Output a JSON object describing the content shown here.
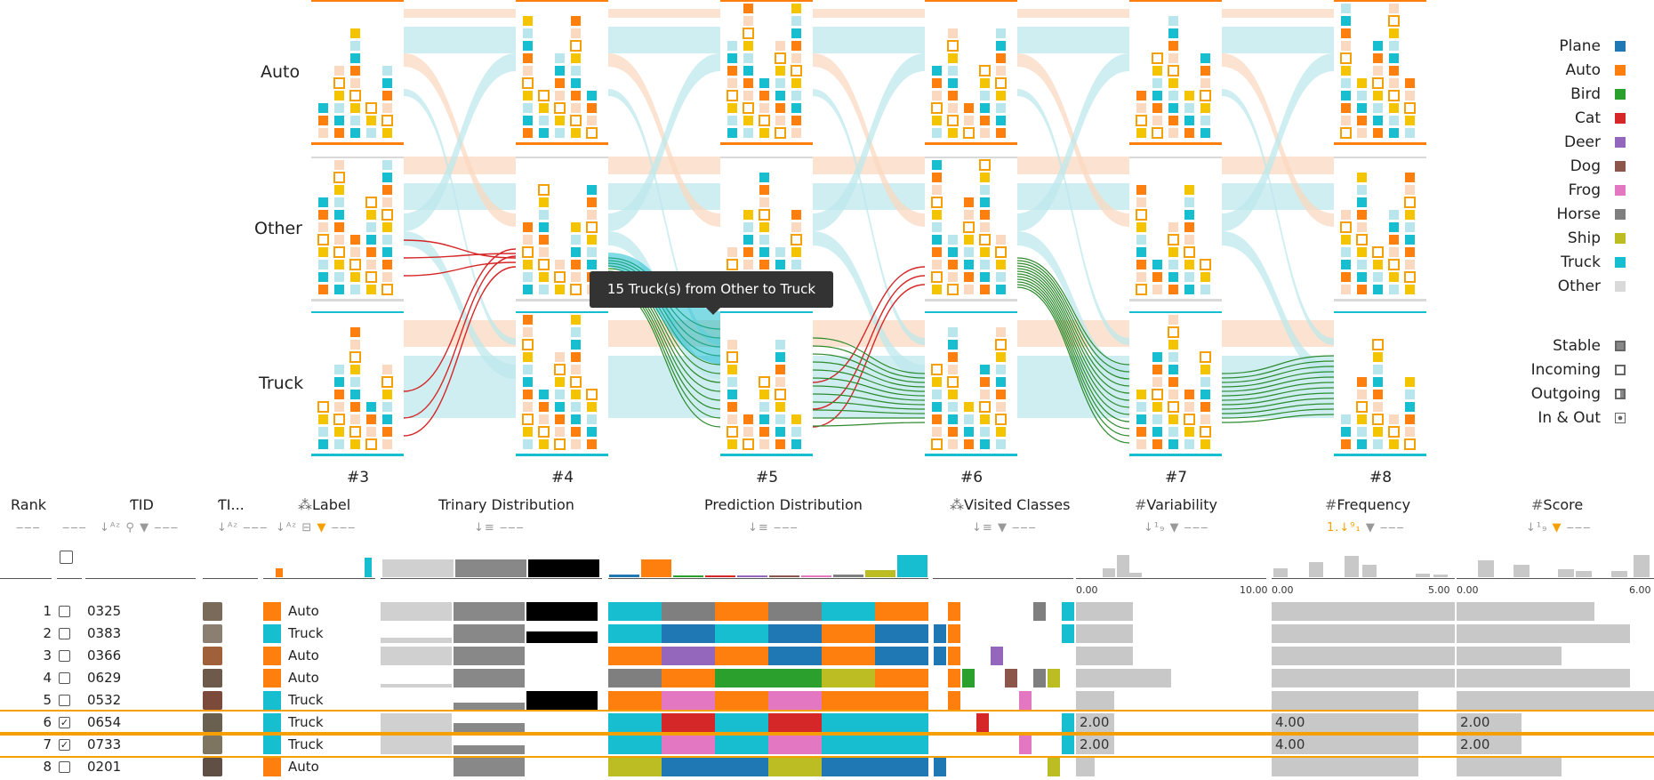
{
  "colors": {
    "plane": "#1f77b4",
    "auto": "#ff7f0e",
    "bird": "#2ca02c",
    "cat": "#d62728",
    "deer": "#9467bd",
    "dog": "#8c564b",
    "frog": "#e377c2",
    "horse": "#7f7f7f",
    "ship": "#bcbd22",
    "truck": "#17becf",
    "other": "#d9d9d9",
    "stable_flow_orange": "#fbd8c0",
    "stable_flow_cyan": "#bde8ec",
    "incoming_link": "#2e8b2e",
    "outgoing_link": "#d62728",
    "highlight": "#f5a000"
  },
  "rows_labels": [
    "Auto",
    "Other",
    "Truck"
  ],
  "steps": [
    "#3",
    "#4",
    "#5",
    "#6",
    "#7",
    "#8"
  ],
  "tooltip": "15 Truck(s) from Other to Truck",
  "legend": {
    "classes": [
      {
        "name": "Plane",
        "color": "#1f77b4"
      },
      {
        "name": "Auto",
        "color": "#ff7f0e"
      },
      {
        "name": "Bird",
        "color": "#2ca02c"
      },
      {
        "name": "Cat",
        "color": "#d62728"
      },
      {
        "name": "Deer",
        "color": "#9467bd"
      },
      {
        "name": "Dog",
        "color": "#8c564b"
      },
      {
        "name": "Frog",
        "color": "#e377c2"
      },
      {
        "name": "Horse",
        "color": "#7f7f7f"
      },
      {
        "name": "Ship",
        "color": "#bcbd22"
      },
      {
        "name": "Truck",
        "color": "#17becf"
      },
      {
        "name": "Other",
        "color": "#d9d9d9"
      }
    ],
    "states": [
      {
        "name": "Stable",
        "icon": "stable-icon"
      },
      {
        "name": "Incoming",
        "icon": "incoming-icon"
      },
      {
        "name": "Outgoing",
        "icon": "outgoing-icon"
      },
      {
        "name": "In & Out",
        "icon": "in-out-icon"
      }
    ]
  },
  "columns": {
    "rank": "Rank",
    "id": "ID",
    "image": "I...",
    "label": "Label",
    "trinary": "Trinary Distribution",
    "prediction": "Prediction Distribution",
    "visited": "Visited Classes",
    "variability": "Variability",
    "frequency": "Frequency",
    "score": "Score"
  },
  "axes": {
    "variability": {
      "min": "0.00",
      "max": "10.00"
    },
    "frequency": {
      "min": "0.00",
      "max": "5.00"
    },
    "score": {
      "min": "0.00",
      "max": "6.00"
    }
  },
  "rows": [
    {
      "rank": "1",
      "id": "0325",
      "label": "Auto",
      "checked": false,
      "trinary": [
        1,
        1,
        1
      ],
      "pred": [
        "truck",
        "horse",
        "auto",
        "horse",
        "truck",
        "auto"
      ],
      "visited": [
        "auto",
        "horse",
        "truck"
      ],
      "variability": 0.3,
      "frequency": 1.0,
      "score": 0.7,
      "text": null
    },
    {
      "rank": "2",
      "id": "0383",
      "label": "Truck",
      "checked": false,
      "trinary": [
        0.3,
        1,
        0.6
      ],
      "pred": [
        "truck",
        "plane",
        "truck",
        "plane",
        "auto",
        "plane"
      ],
      "visited": [
        "plane",
        "auto",
        "truck"
      ],
      "variability": 0.3,
      "frequency": 1.0,
      "score": 0.88,
      "text": null
    },
    {
      "rank": "3",
      "id": "0366",
      "label": "Auto",
      "checked": false,
      "trinary": [
        1,
        1,
        0
      ],
      "pred": [
        "auto",
        "deer",
        "auto",
        "plane",
        "auto",
        "plane"
      ],
      "visited": [
        "plane",
        "auto",
        "deer"
      ],
      "variability": 0.3,
      "frequency": 1.0,
      "score": 0.53,
      "text": null
    },
    {
      "rank": "4",
      "id": "0629",
      "label": "Auto",
      "checked": false,
      "trinary": [
        0.2,
        1,
        0
      ],
      "pred": [
        "horse",
        "auto",
        "bird",
        "bird",
        "ship",
        "auto"
      ],
      "visited": [
        "auto",
        "bird",
        "dog",
        "horse",
        "ship"
      ],
      "variability": 0.5,
      "frequency": 1.0,
      "score": 0.88,
      "text": null
    },
    {
      "rank": "5",
      "id": "0532",
      "label": "Truck",
      "checked": false,
      "trinary": [
        0,
        0.4,
        1
      ],
      "pred": [
        "auto",
        "frog",
        "auto",
        "frog",
        "auto",
        "auto"
      ],
      "visited": [
        "auto",
        "frog"
      ],
      "variability": 0.2,
      "frequency": 0.8,
      "score": 1.0,
      "text": null
    },
    {
      "rank": "6",
      "id": "0654",
      "label": "Truck",
      "checked": true,
      "trinary": [
        1,
        0.5,
        0
      ],
      "pred": [
        "truck",
        "cat",
        "truck",
        "cat",
        "truck",
        "truck"
      ],
      "visited": [
        "cat",
        "truck"
      ],
      "variability": 0.2,
      "frequency": 0.8,
      "score": 0.33,
      "text": {
        "variability": "2.00",
        "frequency": "4.00",
        "score": "2.00"
      }
    },
    {
      "rank": "7",
      "id": "0733",
      "label": "Truck",
      "checked": true,
      "trinary": [
        1,
        0.5,
        0
      ],
      "pred": [
        "truck",
        "frog",
        "truck",
        "frog",
        "truck",
        "truck"
      ],
      "visited": [
        "frog",
        "truck"
      ],
      "variability": 0.2,
      "frequency": 0.8,
      "score": 0.33,
      "text": {
        "variability": "2.00",
        "frequency": "4.00",
        "score": "2.00"
      }
    },
    {
      "rank": "8",
      "id": "0201",
      "label": "Auto",
      "checked": false,
      "trinary": [
        0,
        1,
        0
      ],
      "pred": [
        "ship",
        "plane",
        "plane",
        "ship",
        "plane",
        "plane"
      ],
      "visited": [
        "plane",
        "ship"
      ],
      "variability": 0.1,
      "frequency": 0.8,
      "score": 0.53,
      "text": null
    }
  ]
}
